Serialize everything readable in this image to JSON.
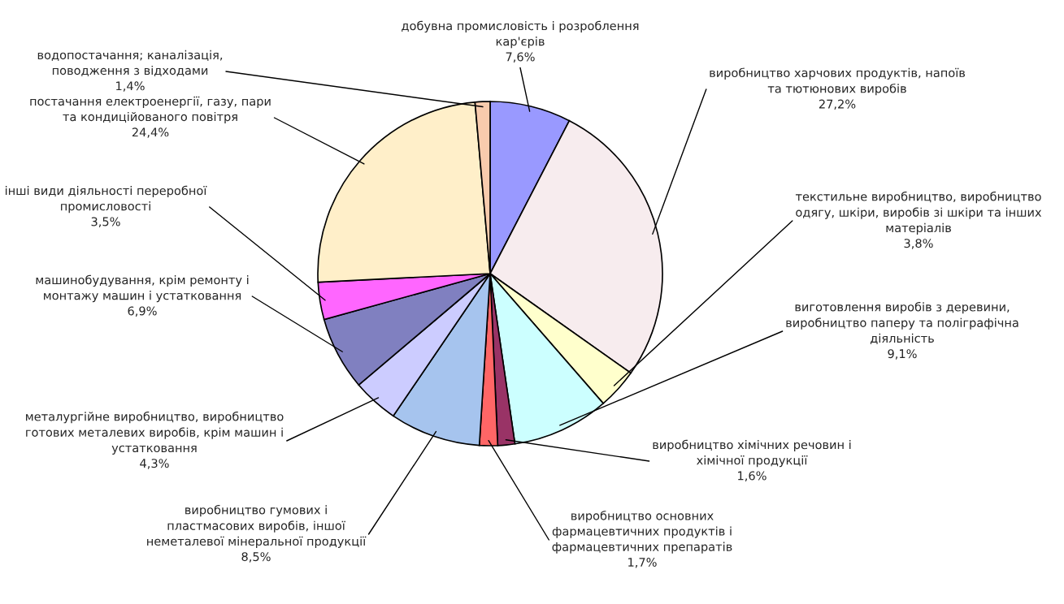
{
  "chart_data": {
    "type": "pie",
    "categories": [
      "добувна промисловість і розроблення\nкар'єрів",
      "виробництво харчових продуктів, напоїв\nта тютюнових виробів",
      "текстильне виробництво, виробництво\nодягу, шкіри, виробів зі шкіри та інших\nматеріалів",
      "виготовлення виробів з деревини,\nвиробництво паперу та поліграфічна\nдіяльність",
      "виробництво хімічних речовин і\nхімічної продукції",
      "виробництво основних\nфармацевтичних продуктів і\nфармацевтичних препаратів",
      "виробництво гумових і\nпластмасових виробів, іншої\nнеметалевої мінеральної продукції",
      "металургійне виробництво, виробництво\nготових металевих виробів, крім машин і\nустатковання",
      "машинобудування, крім ремонту і\nмонтажу машин і устатковання",
      "інші види діяльності переробної\nпромисловості",
      "постачання електроенергії, газу, пари\nта кондиційованого повітря",
      "водопостачання; каналізація,\nповодження з відходами"
    ],
    "values": [
      7.6,
      27.2,
      3.8,
      9.1,
      1.6,
      1.7,
      8.5,
      4.3,
      6.9,
      3.5,
      24.4,
      1.4
    ],
    "value_labels": [
      "7,6%",
      "27,2%",
      "3,8%",
      "9,1%",
      "1,6%",
      "1,7%",
      "8,5%",
      "4,3%",
      "6,9%",
      "3,5%",
      "24,4%",
      "1,4%"
    ],
    "colors": [
      "#9999ff",
      "#f7ecee",
      "#ffffcc",
      "#ccffff",
      "#993366",
      "#ff6666",
      "#a6c4ee",
      "#ccccff",
      "#8080c0",
      "#ff66ff",
      "#ffefc9",
      "#f8cbad"
    ]
  }
}
